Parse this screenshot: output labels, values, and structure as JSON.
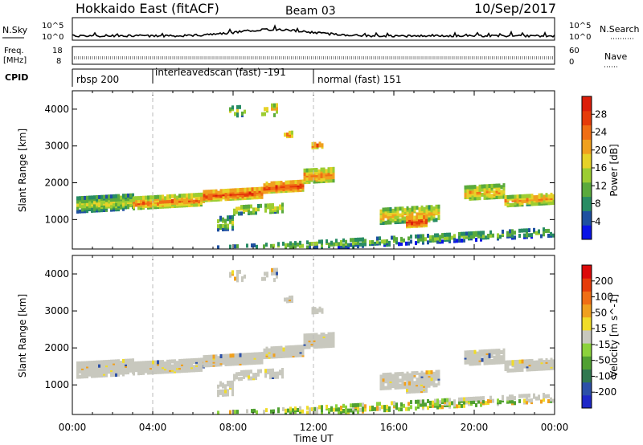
{
  "header": {
    "station": "Hokkaido East (fitACF)",
    "beam": "Beam 03",
    "date": "10/Sep/2017"
  },
  "noise_panel": {
    "left_label": "N.Sky",
    "left_ticks": [
      "10^5",
      "10^0"
    ],
    "right_ticks": [
      "10^5",
      "10^0"
    ],
    "right_label": "N.Search"
  },
  "freq_panel": {
    "left_label_1": "Freq.",
    "left_label_2": "[MHz]",
    "left_ticks": [
      "18",
      "8"
    ],
    "right_ticks": [
      "60",
      "0"
    ],
    "right_label": "Nave"
  },
  "cpid_panel": {
    "label": "CPID",
    "modes": [
      {
        "text": "rbsp 200",
        "start_hour": 0
      },
      {
        "text": "interleavedscan (fast) -191",
        "start_hour": 4
      },
      {
        "text": "normal (fast) 151",
        "start_hour": 12
      }
    ]
  },
  "time_axis": {
    "label": "Time UT",
    "ticks": [
      "00:00",
      "04:00",
      "08:00",
      "12:00",
      "16:00",
      "20:00",
      "00:00"
    ]
  },
  "chart_data": [
    {
      "type": "heatmap",
      "name": "power",
      "ylabel": "Slant Range [km]",
      "yticks": [
        "1000",
        "2000",
        "3000",
        "4000"
      ],
      "ylim": [
        200,
        4500
      ],
      "xlim_hours": [
        0,
        24
      ],
      "colorbar": {
        "label": "Power [dB]",
        "ticks": [
          "4",
          "8",
          "12",
          "16",
          "20",
          "24",
          "28"
        ],
        "range": [
          0,
          32
        ],
        "colors": [
          "#0a14e6",
          "#1e50a0",
          "#288c64",
          "#5aaa3c",
          "#9ccd32",
          "#e6d228",
          "#f0a01e",
          "#f06e14",
          "#e63c0a",
          "#dc1e0a"
        ]
      }
    },
    {
      "type": "heatmap",
      "name": "velocity",
      "ylabel": "Slant Range [km]",
      "yticks": [
        "1000",
        "2000",
        "3000",
        "4000"
      ],
      "ylim": [
        200,
        4500
      ],
      "xlim_hours": [
        0,
        24
      ],
      "colorbar": {
        "label": "Velocity [m s^-1]",
        "ticks": [
          "200",
          "100",
          "50",
          "15",
          "-15",
          "-50",
          "-100",
          "-200"
        ],
        "range": [
          -250,
          250
        ],
        "colors": [
          "#1e28c8",
          "#2c50a8",
          "#307850",
          "#50a032",
          "#8cd23c",
          "#c8c8be",
          "#f0dc28",
          "#f0a01e",
          "#f06e14",
          "#e63c0a",
          "#dc0a0a"
        ]
      }
    }
  ]
}
